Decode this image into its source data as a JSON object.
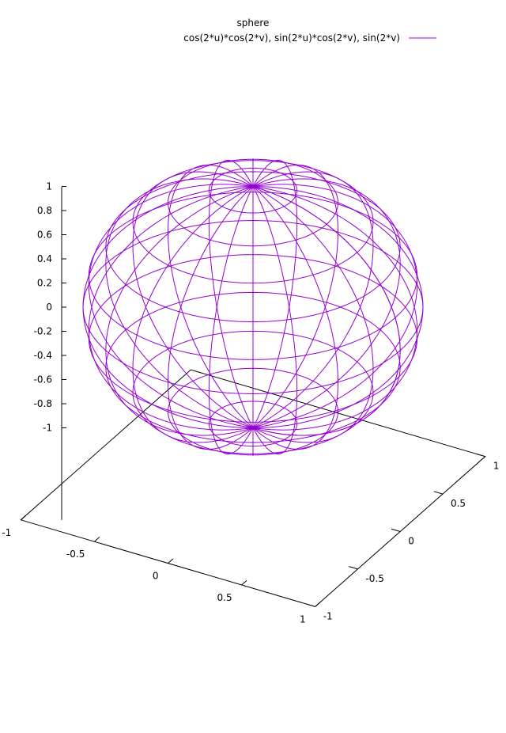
{
  "chart_data": {
    "type": "surface3d",
    "title": "sphere",
    "legend": {
      "placement": "top-right",
      "label": "cos(2*u)*cos(2*v), sin(2*u)*cos(2*v), sin(2*v)"
    },
    "series": [
      {
        "name": "cos(2*u)*cos(2*v), sin(2*u)*cos(2*v), sin(2*v)",
        "color": "#9400d3",
        "parametric": true,
        "x": "cos(2*u)*cos(2*v)",
        "y": "sin(2*u)*cos(2*v)",
        "z": "sin(2*v)",
        "u_range": [
          0,
          3.14159
        ],
        "v_range": [
          -0.785398,
          0.785398
        ],
        "isosamples": [
          24,
          12
        ]
      }
    ],
    "xlim": [
      -1,
      1
    ],
    "ylim": [
      -1,
      1
    ],
    "zlim": [
      -1,
      1
    ],
    "x_ticks": [
      "-1",
      "-0.5",
      "0",
      "0.5",
      "1"
    ],
    "y_ticks": [
      "-1",
      "-0.5",
      "0",
      "0.5",
      "1"
    ],
    "z_ticks": [
      "1",
      "0.8",
      "0.6",
      "0.4",
      "0.2",
      "0",
      "-0.2",
      "-0.4",
      "-0.6",
      "-0.8",
      "-1"
    ],
    "grid": false
  }
}
